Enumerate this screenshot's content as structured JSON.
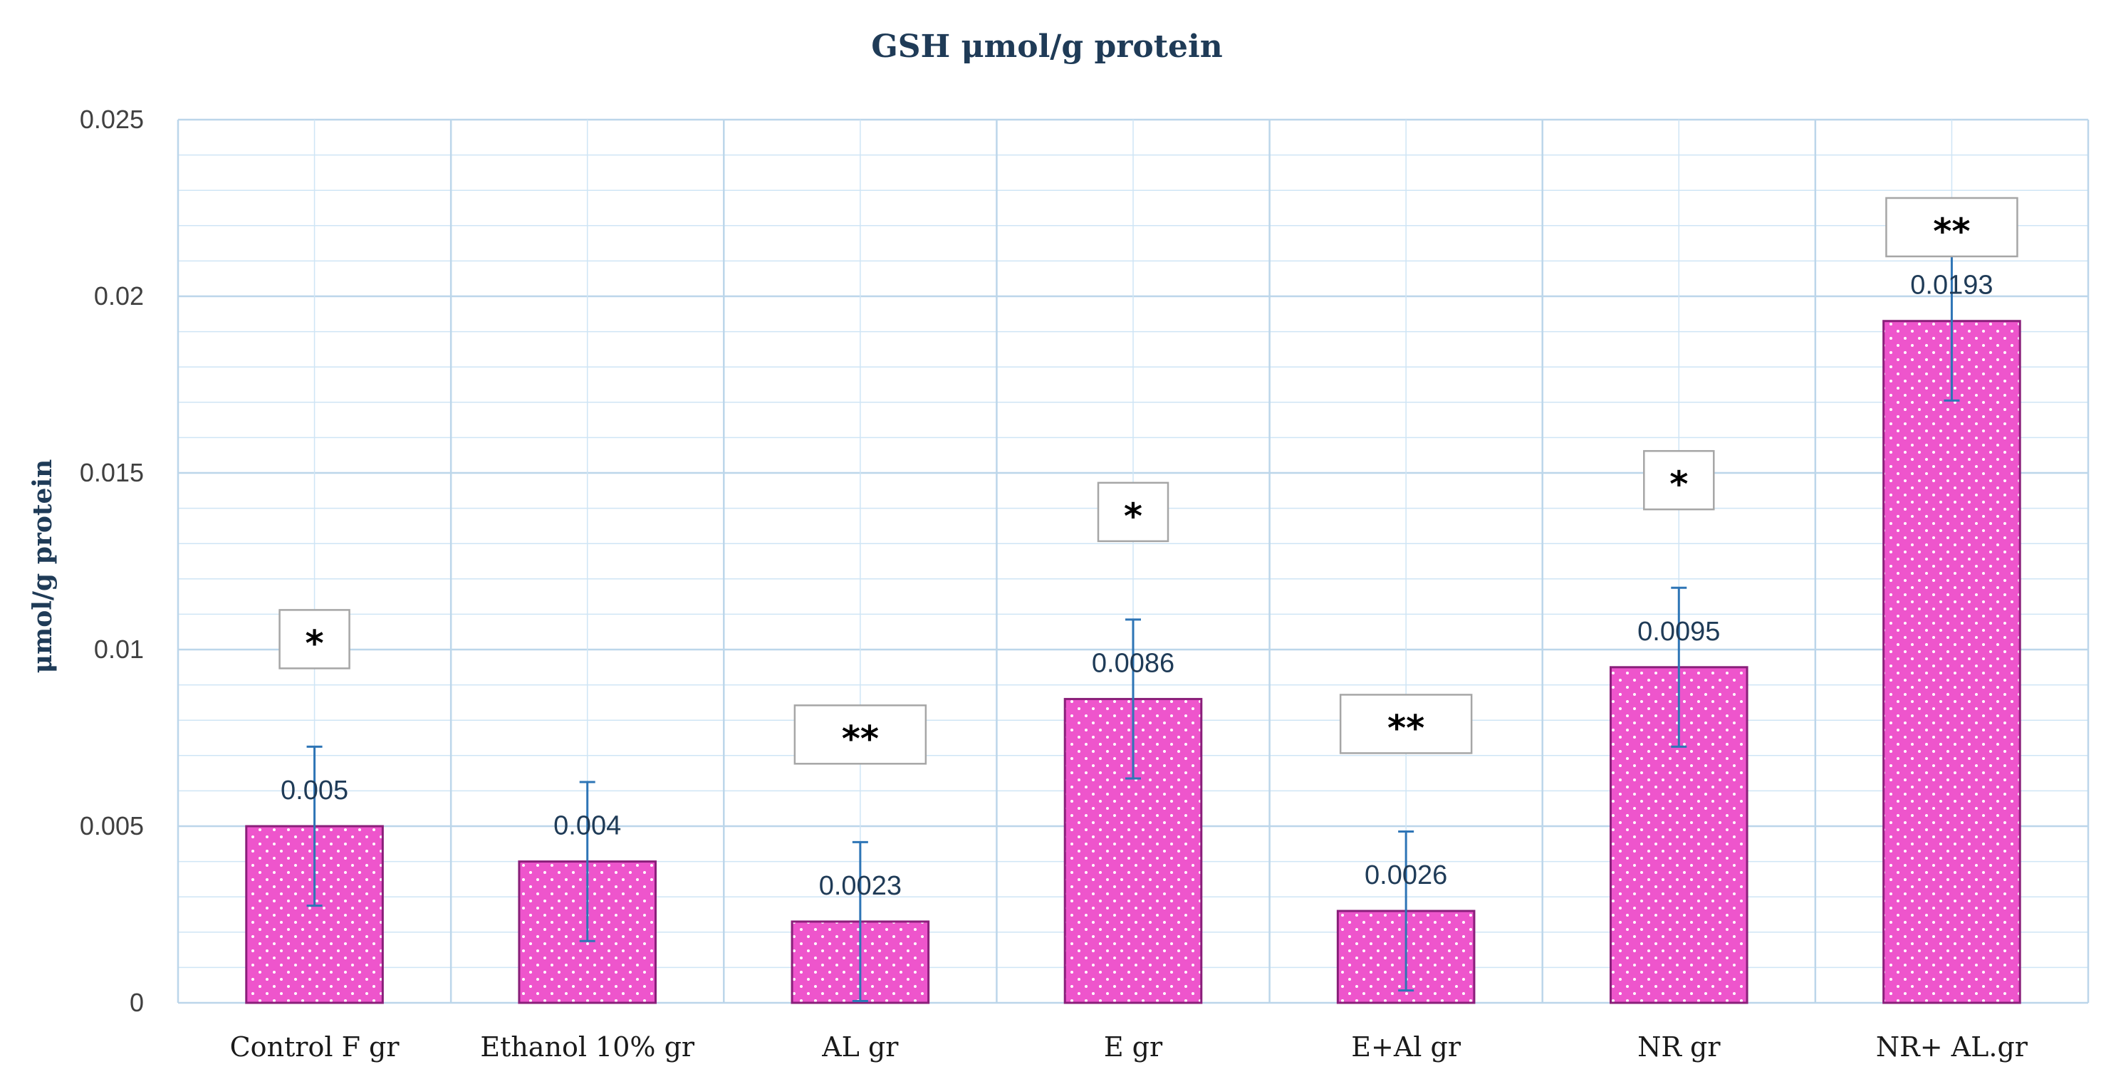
{
  "chart_data": {
    "type": "bar",
    "title": "GSH μmol/g protein",
    "xlabel": "",
    "ylabel": "μmol/g protein",
    "ylim": [
      0,
      0.025
    ],
    "y_major_ticks": [
      0,
      0.005,
      0.01,
      0.015,
      0.02,
      0.025
    ],
    "y_tick_labels": [
      "0",
      "0.005",
      "0.01",
      "0.015",
      "0.02",
      "0.025"
    ],
    "y_minor_step": 0.001,
    "grid": true,
    "categories": [
      "Control F gr",
      "Ethanol 10% gr",
      "AL gr",
      "E gr",
      "E+Al gr",
      "NR gr",
      "NR+ AL.gr"
    ],
    "values": [
      0.005,
      0.004,
      0.0023,
      0.0086,
      0.0026,
      0.0095,
      0.0193
    ],
    "data_labels": [
      "0.005",
      "0.004",
      "0.0023",
      "0.0086",
      "0.0026",
      "0.0095",
      "0.0193"
    ],
    "error": [
      0.00225,
      0.00225,
      0.00225,
      0.00225,
      0.00225,
      0.00225,
      0.00225
    ],
    "significance": [
      "*",
      "",
      "**",
      "*",
      "**",
      "*",
      "**"
    ],
    "colors": {
      "bar_fill": "#ee55cc",
      "bar_edge": "#8a1f7a",
      "error_bar": "#2e75b6",
      "grid": "#cfe5f5",
      "axis": "#bcd6ea",
      "sig_box_edge": "#a6a6a6"
    }
  }
}
